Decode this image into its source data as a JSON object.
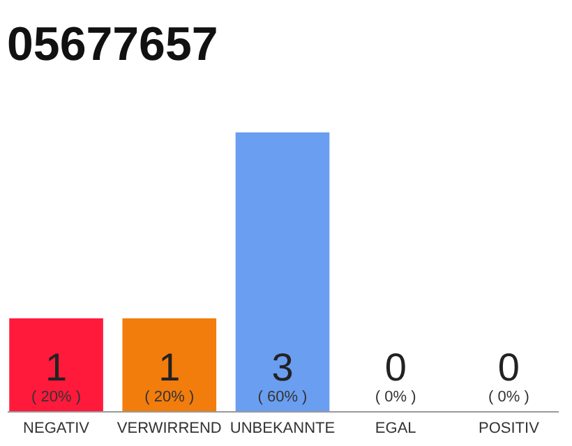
{
  "chart_data": {
    "type": "bar",
    "title": "05677657",
    "categories": [
      "NEGATIV",
      "VERWIRREND",
      "UNBEKANNTE",
      "EGAL",
      "POSITIV"
    ],
    "values": [
      1,
      1,
      3,
      0,
      0
    ],
    "colors": [
      "#ff1a3c",
      "#f27d0c",
      "#6a9ef0",
      "#cccccc",
      "#cccccc"
    ],
    "data_labels": true,
    "annotations": [
      "( 20% )",
      "( 20% )",
      "( 60% )",
      "( 0% )",
      "( 0% )"
    ]
  }
}
